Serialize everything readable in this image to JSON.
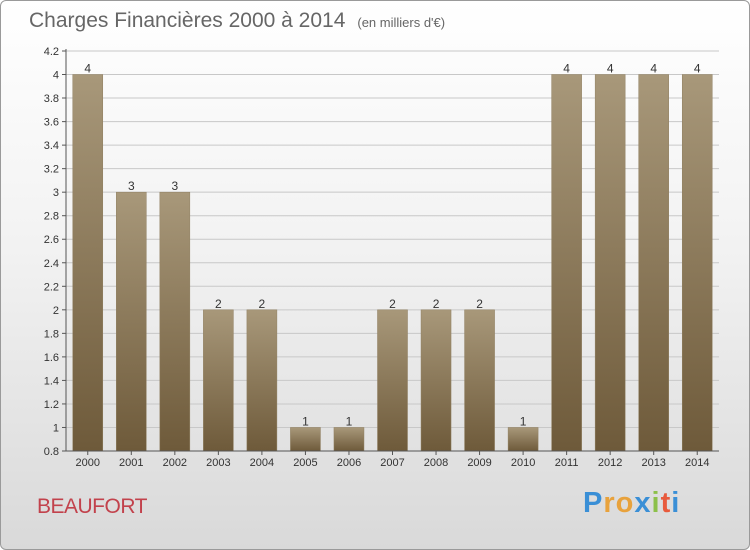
{
  "title": "Charges Financières 2000 à 2014",
  "unit": "(en milliers d'€)",
  "city": "BEAUFORT",
  "brand": {
    "letters": [
      "P",
      "r",
      "o",
      "x",
      "i",
      "t",
      "i"
    ],
    "colors": [
      "#3a8fd6",
      "#e8a23c",
      "#e8a23c",
      "#3a8fd6",
      "#8cc04a",
      "#e85a3c",
      "#3a8fd6"
    ]
  },
  "colors": {
    "bar_top": "#a8987a",
    "bar_bottom": "#6e5a3a",
    "grid": "#c8c8c8",
    "axis": "#555555",
    "text": "#333333"
  },
  "chart_data": {
    "type": "bar",
    "categories": [
      "2000",
      "2001",
      "2002",
      "2003",
      "2004",
      "2005",
      "2006",
      "2007",
      "2008",
      "2009",
      "2010",
      "2011",
      "2012",
      "2013",
      "2014"
    ],
    "values": [
      4,
      3,
      3,
      2,
      2,
      1,
      1,
      2,
      2,
      2,
      1,
      4,
      4,
      4,
      4
    ],
    "data_labels": [
      "4",
      "3",
      "3",
      "2",
      "2",
      "1",
      "1",
      "2",
      "2",
      "2",
      "1",
      "4",
      "4",
      "4",
      "4"
    ],
    "ylim": [
      0.8,
      4.2
    ],
    "yticks": [
      0.8,
      1,
      1.2,
      1.4,
      1.6,
      1.8,
      2,
      2.2,
      2.4,
      2.6,
      2.8,
      3,
      3.2,
      3.4,
      3.6,
      3.8,
      4,
      4.2
    ],
    "ytick_labels": [
      "0.8",
      "1",
      "1.2",
      "1.4",
      "1.6",
      "1.8",
      "2",
      "2.2",
      "2.4",
      "2.6",
      "2.8",
      "3",
      "3.2",
      "3.4",
      "3.6",
      "3.8",
      "4",
      "4.2"
    ],
    "grid": true,
    "xlabel": "",
    "ylabel": ""
  }
}
